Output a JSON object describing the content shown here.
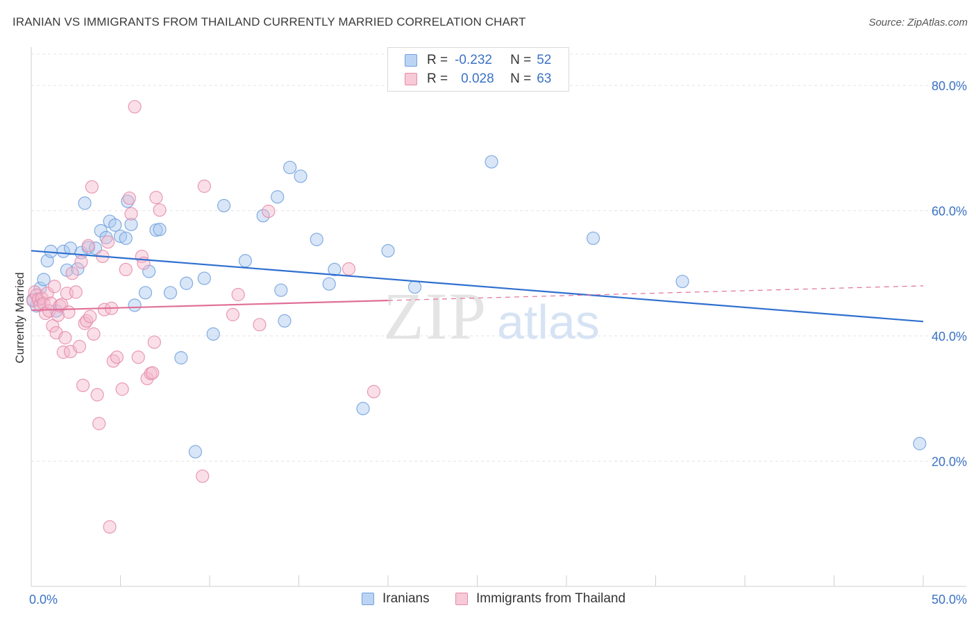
{
  "title": "IRANIAN VS IMMIGRANTS FROM THAILAND CURRENTLY MARRIED CORRELATION CHART",
  "source": "Source: ZipAtlas.com",
  "watermark": {
    "zip": "ZIP",
    "atlas": "atlas"
  },
  "legend": {
    "rows": [
      {
        "r_label": "R =",
        "r_value": "-0.232",
        "n_label": "N =",
        "n_value": "52",
        "color": "#a8c7ef",
        "border": "#6f9fdc"
      },
      {
        "r_label": "R =",
        "r_value": "0.028",
        "n_label": "N =",
        "n_value": "63",
        "color": "#f5b8cb",
        "border": "#e07fa0"
      }
    ]
  },
  "bottom_legend": {
    "iranians": "Iranians",
    "thailand": "Immigrants from Thailand"
  },
  "colors": {
    "blue_fill": "#a8c7ef",
    "blue_stroke": "#6f9fdc",
    "blue_line": "#2f6fcf",
    "pink_fill": "#f5b8cb",
    "pink_stroke": "#e48aa8",
    "pink_line": "#e06f98",
    "axis_label": "#3a72c4",
    "grid": "#e3e3e3"
  },
  "chart_data": {
    "type": "scatter",
    "title": "IRANIAN VS IMMIGRANTS FROM THAILAND CURRENTLY MARRIED CORRELATION CHART",
    "xlabel": "",
    "ylabel": "Currently Married",
    "xlim": [
      0,
      50
    ],
    "ylim": [
      0,
      85
    ],
    "x_tick_labels": [
      {
        "value": 0,
        "label": "0.0%"
      },
      {
        "value": 50,
        "label": "50.0%"
      }
    ],
    "y_tick_labels": [
      {
        "value": 20,
        "label": "20.0%"
      },
      {
        "value": 40,
        "label": "40.0%"
      },
      {
        "value": 60,
        "label": "60.0%"
      },
      {
        "value": 80,
        "label": "80.0%"
      }
    ],
    "grid": true,
    "legend_position": "top-center",
    "series": [
      {
        "name": "Iranians",
        "r": -0.232,
        "n": 52,
        "trend": {
          "x": [
            0,
            50
          ],
          "y": [
            53.6,
            42.3
          ],
          "solid_until": 50
        },
        "points": [
          [
            0.3,
            44.8
          ],
          [
            0.5,
            47.6
          ],
          [
            0.7,
            49.0
          ],
          [
            0.9,
            52.0
          ],
          [
            1.1,
            53.5
          ],
          [
            1.4,
            44.0
          ],
          [
            1.8,
            53.5
          ],
          [
            2.0,
            50.5
          ],
          [
            2.2,
            54.0
          ],
          [
            2.6,
            50.7
          ],
          [
            2.8,
            53.3
          ],
          [
            3.0,
            61.2
          ],
          [
            3.2,
            54.1
          ],
          [
            3.6,
            54.0
          ],
          [
            3.9,
            56.8
          ],
          [
            4.2,
            55.7
          ],
          [
            4.4,
            58.3
          ],
          [
            4.7,
            57.7
          ],
          [
            5.0,
            55.9
          ],
          [
            5.3,
            55.6
          ],
          [
            5.4,
            61.5
          ],
          [
            5.6,
            57.8
          ],
          [
            5.8,
            44.9
          ],
          [
            6.4,
            46.9
          ],
          [
            6.6,
            50.3
          ],
          [
            7.0,
            56.9
          ],
          [
            7.2,
            57.0
          ],
          [
            7.8,
            46.9
          ],
          [
            8.4,
            36.5
          ],
          [
            8.7,
            48.4
          ],
          [
            9.2,
            21.5
          ],
          [
            9.7,
            49.2
          ],
          [
            10.2,
            40.3
          ],
          [
            10.8,
            60.8
          ],
          [
            12.0,
            52.0
          ],
          [
            13.0,
            59.2
          ],
          [
            13.8,
            62.2
          ],
          [
            14.0,
            47.3
          ],
          [
            14.2,
            42.4
          ],
          [
            14.5,
            66.9
          ],
          [
            15.1,
            65.5
          ],
          [
            16.0,
            55.4
          ],
          [
            16.7,
            48.3
          ],
          [
            17.0,
            50.6
          ],
          [
            18.6,
            28.4
          ],
          [
            20.0,
            53.6
          ],
          [
            21.5,
            47.8
          ],
          [
            25.8,
            67.8
          ],
          [
            31.5,
            55.6
          ],
          [
            36.5,
            48.7
          ],
          [
            49.8,
            22.8
          ],
          [
            0.1,
            45.8
          ]
        ]
      },
      {
        "name": "Immigrants from Thailand",
        "r": 0.028,
        "n": 63,
        "trend": {
          "x": [
            0,
            50
          ],
          "y": [
            44.1,
            48.0
          ],
          "solid_until": 20
        },
        "points": [
          [
            0.1,
            45.6
          ],
          [
            0.2,
            47.0
          ],
          [
            0.3,
            46.5
          ],
          [
            0.4,
            45.8
          ],
          [
            0.5,
            44.9
          ],
          [
            0.6,
            46.0
          ],
          [
            0.7,
            45.2
          ],
          [
            0.8,
            43.6
          ],
          [
            0.9,
            46.8
          ],
          [
            1.0,
            44.0
          ],
          [
            1.1,
            45.2
          ],
          [
            1.2,
            41.6
          ],
          [
            1.3,
            47.9
          ],
          [
            1.4,
            40.5
          ],
          [
            1.5,
            43.3
          ],
          [
            1.6,
            44.8
          ],
          [
            1.7,
            45.0
          ],
          [
            1.8,
            37.4
          ],
          [
            1.9,
            39.7
          ],
          [
            2.0,
            46.8
          ],
          [
            2.1,
            43.8
          ],
          [
            2.2,
            37.5
          ],
          [
            2.3,
            50.0
          ],
          [
            2.5,
            47.0
          ],
          [
            2.7,
            38.3
          ],
          [
            2.8,
            51.8
          ],
          [
            2.9,
            32.1
          ],
          [
            3.0,
            42.0
          ],
          [
            3.1,
            42.4
          ],
          [
            3.2,
            54.4
          ],
          [
            3.3,
            43.1
          ],
          [
            3.4,
            63.8
          ],
          [
            3.5,
            40.3
          ],
          [
            3.7,
            30.6
          ],
          [
            3.8,
            26.0
          ],
          [
            4.0,
            52.7
          ],
          [
            4.1,
            44.2
          ],
          [
            4.3,
            55.0
          ],
          [
            4.5,
            44.4
          ],
          [
            4.6,
            36.0
          ],
          [
            4.8,
            36.6
          ],
          [
            5.1,
            31.5
          ],
          [
            5.3,
            50.6
          ],
          [
            5.5,
            62.0
          ],
          [
            5.6,
            59.5
          ],
          [
            5.8,
            76.6
          ],
          [
            6.0,
            36.6
          ],
          [
            6.2,
            52.7
          ],
          [
            6.3,
            51.6
          ],
          [
            6.5,
            33.2
          ],
          [
            6.7,
            34.0
          ],
          [
            6.8,
            34.1
          ],
          [
            6.9,
            39.0
          ],
          [
            7.0,
            62.1
          ],
          [
            7.2,
            60.1
          ],
          [
            9.6,
            17.6
          ],
          [
            9.7,
            63.9
          ],
          [
            11.3,
            43.4
          ],
          [
            11.6,
            46.6
          ],
          [
            12.8,
            41.8
          ],
          [
            13.3,
            59.9
          ],
          [
            17.8,
            50.7
          ],
          [
            19.2,
            31.1
          ]
        ]
      }
    ],
    "extra_points": [
      [
        4.4,
        9.5
      ]
    ]
  }
}
